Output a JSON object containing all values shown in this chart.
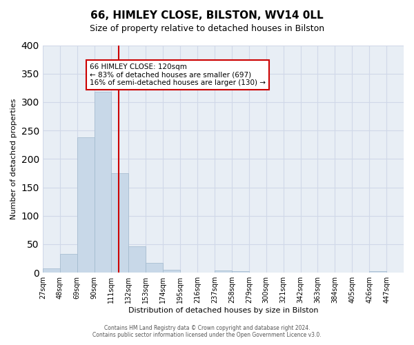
{
  "title": "66, HIMLEY CLOSE, BILSTON, WV14 0LL",
  "subtitle": "Size of property relative to detached houses in Bilston",
  "xlabel": "Distribution of detached houses by size in Bilston",
  "ylabel": "Number of detached properties",
  "bar_color": "#c8d8e8",
  "bar_edgecolor": "#a0b8cc",
  "background_color": "#ffffff",
  "grid_color": "#d0d8e8",
  "annotation_box_color": "#cc0000",
  "vline_color": "#cc0000",
  "vline_x": 120,
  "annotation_title": "66 HIMLEY CLOSE: 120sqm",
  "annotation_line2": "← 83% of detached houses are smaller (697)",
  "annotation_line3": "16% of semi-detached houses are larger (130) →",
  "tick_labels": [
    "27sqm",
    "48sqm",
    "69sqm",
    "90sqm",
    "111sqm",
    "132sqm",
    "153sqm",
    "174sqm",
    "195sqm",
    "216sqm",
    "237sqm",
    "258sqm",
    "279sqm",
    "300sqm",
    "321sqm",
    "342sqm",
    "363sqm",
    "384sqm",
    "405sqm",
    "426sqm",
    "447sqm"
  ],
  "bin_edges": [
    27,
    48,
    69,
    90,
    111,
    132,
    153,
    174,
    195,
    216,
    237,
    258,
    279,
    300,
    321,
    342,
    363,
    384,
    405,
    426,
    447
  ],
  "bar_heights": [
    8,
    33,
    238,
    318,
    175,
    46,
    17,
    5,
    0,
    0,
    4,
    3,
    0,
    0,
    0,
    0,
    0,
    0,
    0,
    3
  ],
  "ylim": [
    0,
    400
  ],
  "yticks": [
    0,
    50,
    100,
    150,
    200,
    250,
    300,
    350,
    400
  ],
  "footer_line1": "Contains HM Land Registry data © Crown copyright and database right 2024.",
  "footer_line2": "Contains public sector information licensed under the Open Government Licence v3.0."
}
